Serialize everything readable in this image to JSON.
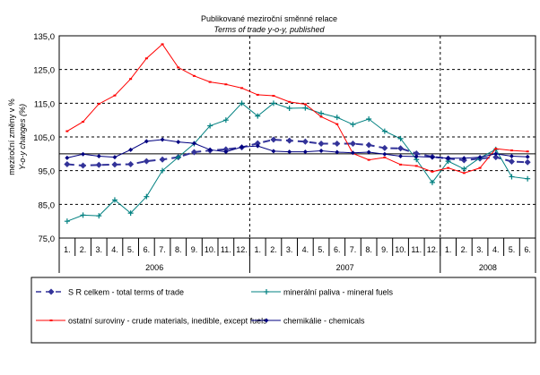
{
  "chart_data": {
    "type": "line",
    "title": "Publikované meziroční směnné relace",
    "subtitle": "Terms of trade y-o-y, published",
    "ylabel": "meziroční změny v %",
    "ylabel2": "Y-o-y changes (%)",
    "ylim": [
      75,
      135
    ],
    "yticks": [
      "75,0",
      "85,0",
      "95,0",
      "105,0",
      "115,0",
      "125,0",
      "135,0"
    ],
    "ytick_values": [
      75,
      85,
      95,
      105,
      115,
      125,
      135
    ],
    "grid": true,
    "reference_line": 100,
    "legend_position": "bottom",
    "categories": [
      "1.",
      "2.",
      "3.",
      "4.",
      "5.",
      "6.",
      "7.",
      "8.",
      "9.",
      "10.",
      "11.",
      "12.",
      "1.",
      "2.",
      "3.",
      "4.",
      "5.",
      "6.",
      "7.",
      "8.",
      "9.",
      "10.",
      "11.",
      "12.",
      "1.",
      "2.",
      "3.",
      "4.",
      "5.",
      "6."
    ],
    "years": [
      {
        "label": "2006",
        "months": 12
      },
      {
        "label": "2007",
        "months": 12
      },
      {
        "label": "2008",
        "months": 6
      }
    ],
    "series": [
      {
        "name": "S R celkem - total terms of trade",
        "color": "#333399",
        "style": "dashed-diamond",
        "values": [
          96.9,
          96.5,
          96.7,
          96.8,
          96.9,
          97.8,
          98.3,
          99.0,
          100.5,
          101.0,
          101.3,
          101.9,
          103.1,
          104.2,
          103.9,
          103.6,
          103.0,
          103.0,
          103.0,
          102.6,
          101.7,
          101.6,
          100.1,
          99.1,
          98.6,
          98.1,
          98.6,
          99.0,
          97.7,
          97.5
        ]
      },
      {
        "name": "minerální paliva - mineral fuels",
        "color": "#008080",
        "style": "plus",
        "values": [
          80.0,
          81.8,
          81.6,
          86.3,
          82.4,
          87.3,
          95.0,
          99.0,
          103.0,
          108.3,
          110.0,
          115.0,
          111.2,
          115.0,
          113.5,
          113.6,
          112.0,
          110.8,
          108.7,
          110.3,
          106.7,
          104.5,
          98.3,
          91.5,
          97.8,
          95.5,
          98.8,
          101.3,
          93.2,
          92.6
        ]
      },
      {
        "name": "ostatní suroviny - crude materials, inedible, except fuels",
        "color": "#ff0000",
        "style": "line",
        "values": [
          106.7,
          109.5,
          114.8,
          117.3,
          122.2,
          128.3,
          132.5,
          125.6,
          123.1,
          121.3,
          120.6,
          119.5,
          117.5,
          117.2,
          115.4,
          114.7,
          111.0,
          108.8,
          100.1,
          98.2,
          98.9,
          96.8,
          96.4,
          94.7,
          95.8,
          94.3,
          95.8,
          101.5,
          101.0,
          100.7
        ]
      },
      {
        "name": "chemikálie - chemicals",
        "color": "#000080",
        "style": "diamond",
        "values": [
          98.8,
          99.9,
          99.3,
          99.0,
          101.2,
          103.7,
          104.2,
          103.5,
          103.1,
          101.2,
          100.6,
          102.0,
          102.3,
          100.8,
          100.6,
          100.6,
          100.9,
          100.5,
          100.3,
          100.5,
          99.9,
          99.3,
          99.2,
          99.0,
          98.7,
          98.7,
          99.0,
          100.0,
          99.3,
          99.1
        ]
      }
    ]
  }
}
